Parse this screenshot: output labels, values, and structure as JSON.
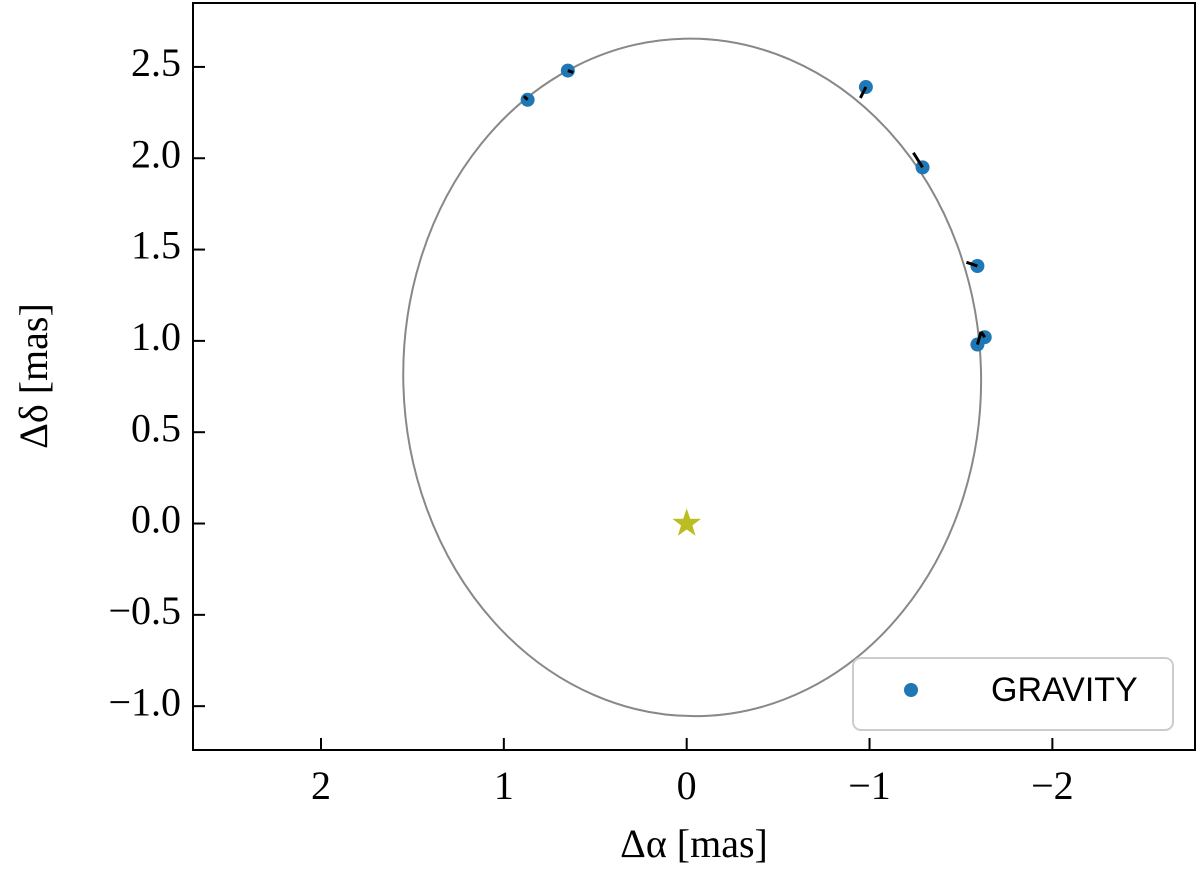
{
  "chart_data": {
    "type": "scatter",
    "xlabel": "Δα [mas]",
    "ylabel": "Δδ [mas]",
    "xlim": [
      2.7,
      -2.78
    ],
    "ylim": [
      -1.24,
      2.85
    ],
    "xticks": [
      2,
      1,
      0,
      {
        "value": -1,
        "label": "−1"
      },
      {
        "value": -2,
        "label": "−2"
      }
    ],
    "yticks": [
      {
        "value": -1,
        "label": "−1.0"
      },
      {
        "value": -0.5,
        "label": "−0.5"
      },
      {
        "value": 0,
        "label": "0.0"
      },
      {
        "value": 0.5,
        "label": "0.5"
      },
      {
        "value": 1,
        "label": "1.0"
      },
      {
        "value": 1.5,
        "label": "1.5"
      },
      {
        "value": 2,
        "label": "2.0"
      },
      {
        "value": 2.5,
        "label": "2.5"
      }
    ],
    "series": [
      {
        "name": "GRAVITY",
        "color": "#1f77b4",
        "x": [
          0.87,
          0.65,
          -0.98,
          -1.29,
          -1.59,
          -1.63,
          -1.59
        ],
        "values": [
          2.32,
          2.48,
          2.39,
          1.95,
          1.41,
          1.02,
          0.98
        ]
      }
    ],
    "model_positions": {
      "color": "#000000",
      "x": [
        0.89,
        0.62,
        -0.95,
        -1.24,
        -1.53,
        -1.61,
        -1.61
      ],
      "values": [
        2.34,
        2.47,
        2.33,
        2.03,
        1.43,
        1.05,
        1.05
      ]
    },
    "orbit": {
      "color": "#888888",
      "center": [
        -0.03,
        0.8
      ],
      "semi_axes": [
        1.58,
        1.855
      ],
      "tilt_deg": -1.5
    },
    "star": {
      "x": 0,
      "y": 0,
      "color": "#bcbd22"
    },
    "legend": "lower right"
  }
}
